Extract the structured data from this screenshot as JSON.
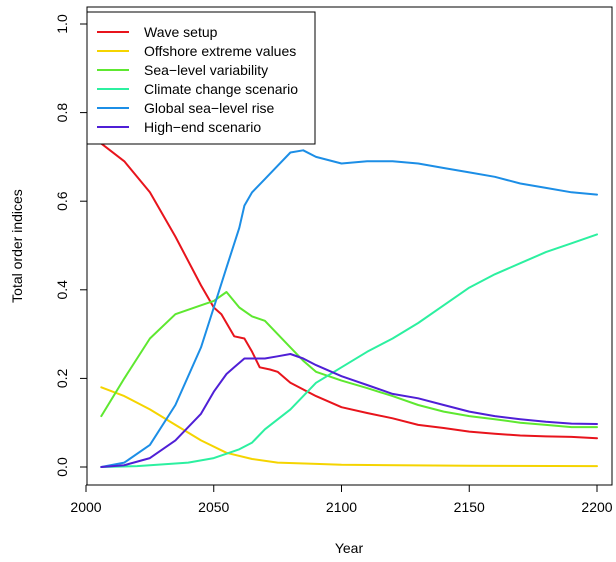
{
  "chart_data": {
    "type": "line",
    "title": "",
    "xlabel": "Year",
    "ylabel": "Total order indices",
    "xlim": [
      2000,
      2200
    ],
    "ylim": [
      0.0,
      1.0
    ],
    "xticks": [
      2000,
      2050,
      2100,
      2150,
      2200
    ],
    "yticks": [
      0.0,
      0.2,
      0.4,
      0.6,
      0.8,
      1.0
    ],
    "xtick_labels": [
      "2000",
      "2050",
      "2100",
      "2150",
      "2200"
    ],
    "ytick_labels": [
      "0.0",
      "0.2",
      "0.4",
      "0.6",
      "0.8",
      "1.0"
    ],
    "grid": false,
    "legend_position": "top-left",
    "series": [
      {
        "name": "Wave setup",
        "color": "#e8141c",
        "x": [
          2006,
          2015,
          2025,
          2035,
          2045,
          2050,
          2053,
          2055,
          2058,
          2062,
          2065,
          2068,
          2072,
          2075,
          2080,
          2090,
          2100,
          2110,
          2120,
          2130,
          2140,
          2150,
          2160,
          2170,
          2180,
          2190,
          2200
        ],
        "y": [
          0.73,
          0.69,
          0.62,
          0.52,
          0.41,
          0.36,
          0.345,
          0.325,
          0.295,
          0.29,
          0.26,
          0.225,
          0.22,
          0.215,
          0.19,
          0.16,
          0.135,
          0.122,
          0.11,
          0.095,
          0.088,
          0.08,
          0.075,
          0.071,
          0.069,
          0.068,
          0.065
        ]
      },
      {
        "name": "Offshore extreme values",
        "color": "#f5d400",
        "x": [
          2006,
          2015,
          2025,
          2035,
          2045,
          2055,
          2065,
          2075,
          2090,
          2100,
          2150,
          2200
        ],
        "y": [
          0.18,
          0.16,
          0.13,
          0.095,
          0.06,
          0.032,
          0.018,
          0.01,
          0.007,
          0.005,
          0.003,
          0.002
        ]
      },
      {
        "name": "Sea−level variability",
        "color": "#5ee830",
        "x": [
          2006,
          2015,
          2025,
          2035,
          2045,
          2050,
          2055,
          2060,
          2065,
          2070,
          2075,
          2080,
          2085,
          2090,
          2100,
          2110,
          2120,
          2130,
          2140,
          2150,
          2160,
          2170,
          2180,
          2190,
          2200
        ],
        "y": [
          0.115,
          0.2,
          0.29,
          0.345,
          0.365,
          0.375,
          0.395,
          0.36,
          0.34,
          0.33,
          0.3,
          0.27,
          0.24,
          0.215,
          0.195,
          0.178,
          0.16,
          0.14,
          0.125,
          0.115,
          0.108,
          0.1,
          0.095,
          0.09,
          0.09
        ]
      },
      {
        "name": "Climate change scenario",
        "color": "#2cf0a0",
        "x": [
          2006,
          2020,
          2040,
          2050,
          2060,
          2065,
          2070,
          2080,
          2090,
          2100,
          2110,
          2120,
          2130,
          2140,
          2150,
          2160,
          2170,
          2180,
          2190,
          2200
        ],
        "y": [
          0.0,
          0.002,
          0.01,
          0.02,
          0.04,
          0.055,
          0.085,
          0.13,
          0.19,
          0.225,
          0.26,
          0.29,
          0.325,
          0.365,
          0.405,
          0.435,
          0.46,
          0.485,
          0.505,
          0.525
        ]
      },
      {
        "name": "Global sea−level rise",
        "color": "#1c8ee6",
        "x": [
          2006,
          2015,
          2025,
          2035,
          2045,
          2050,
          2055,
          2060,
          2062,
          2065,
          2070,
          2075,
          2080,
          2085,
          2090,
          2100,
          2110,
          2120,
          2130,
          2140,
          2150,
          2160,
          2170,
          2180,
          2190,
          2200
        ],
        "y": [
          0.0,
          0.01,
          0.05,
          0.14,
          0.27,
          0.36,
          0.45,
          0.54,
          0.59,
          0.62,
          0.65,
          0.68,
          0.71,
          0.715,
          0.7,
          0.685,
          0.69,
          0.69,
          0.685,
          0.675,
          0.665,
          0.655,
          0.64,
          0.63,
          0.62,
          0.615
        ]
      },
      {
        "name": "High−end scenario",
        "color": "#4f1fd6",
        "x": [
          2006,
          2015,
          2025,
          2035,
          2045,
          2050,
          2055,
          2058,
          2062,
          2066,
          2070,
          2075,
          2080,
          2085,
          2090,
          2100,
          2110,
          2120,
          2130,
          2140,
          2150,
          2160,
          2170,
          2180,
          2190,
          2200
        ],
        "y": [
          0.0,
          0.004,
          0.02,
          0.06,
          0.12,
          0.17,
          0.21,
          0.225,
          0.245,
          0.245,
          0.245,
          0.25,
          0.255,
          0.245,
          0.23,
          0.205,
          0.185,
          0.165,
          0.155,
          0.14,
          0.125,
          0.115,
          0.108,
          0.102,
          0.098,
          0.097
        ]
      }
    ]
  }
}
